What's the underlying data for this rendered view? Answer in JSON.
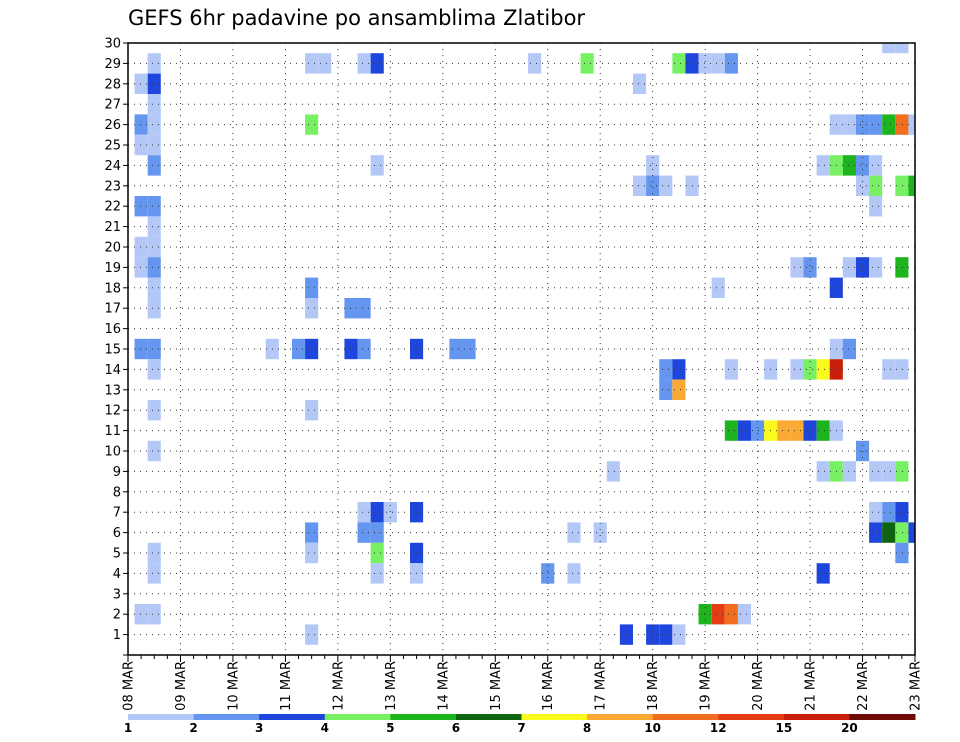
{
  "chart_data": {
    "type": "heatmap",
    "title": "GEFS 6hr padavine po ansamblima Zlatibor",
    "xlabel": "",
    "ylabel": "",
    "x_tick_labels": [
      "08 MAR",
      "09 MAR",
      "10 MAR",
      "11 MAR",
      "12 MAR",
      "13 MAR",
      "14 MAR",
      "15 MAR",
      "16 MAR",
      "17 MAR",
      "18 MAR",
      "19 MAR",
      "20 MAR",
      "21 MAR",
      "22 MAR",
      "23 MAR"
    ],
    "x_range_days": [
      0,
      15
    ],
    "time_step_days": 0.25,
    "y_tick_labels": [
      "1",
      "2",
      "3",
      "4",
      "5",
      "6",
      "7",
      "8",
      "9",
      "10",
      "11",
      "12",
      "13",
      "14",
      "15",
      "16",
      "17",
      "18",
      "19",
      "20",
      "21",
      "22",
      "23",
      "24",
      "25",
      "26",
      "27",
      "28",
      "29",
      "30"
    ],
    "y_range": [
      0,
      30
    ],
    "grid": "dotted",
    "legend": {
      "placement": "bottom",
      "boundaries": [
        "1",
        "2",
        "3",
        "4",
        "5",
        "6",
        "7",
        "8",
        "10",
        "12",
        "15",
        "20"
      ],
      "colors": [
        "#b4c8f8",
        "#6496f0",
        "#1e46dc",
        "#78f064",
        "#1eb41e",
        "#0f640f",
        "#fafa1e",
        "#faaa32",
        "#f06e1e",
        "#e63c14",
        "#c81e0a",
        "#6e0a05"
      ]
    },
    "cells": [
      [
        30,
        14.5,
        0
      ],
      [
        30,
        14.75,
        0
      ],
      [
        29,
        0.5,
        0
      ],
      [
        29,
        3.5,
        0
      ],
      [
        29,
        3.75,
        0
      ],
      [
        29,
        4.5,
        0
      ],
      [
        29,
        4.75,
        2
      ],
      [
        29,
        7.75,
        0
      ],
      [
        29,
        8.75,
        3
      ],
      [
        29,
        10.5,
        3
      ],
      [
        29,
        10.75,
        2
      ],
      [
        29,
        11.0,
        0
      ],
      [
        29,
        11.25,
        0
      ],
      [
        29,
        11.5,
        1
      ],
      [
        28,
        0.25,
        0
      ],
      [
        28,
        0.5,
        2
      ],
      [
        28,
        9.75,
        0
      ],
      [
        27,
        0.5,
        0
      ],
      [
        26,
        0.25,
        1
      ],
      [
        26,
        0.5,
        0
      ],
      [
        26,
        3.5,
        3
      ],
      [
        26,
        13.5,
        0
      ],
      [
        26,
        13.75,
        0
      ],
      [
        26,
        14.0,
        1
      ],
      [
        26,
        14.25,
        1
      ],
      [
        26,
        14.5,
        4
      ],
      [
        26,
        14.75,
        8
      ],
      [
        26,
        15.0,
        0
      ],
      [
        25,
        0.25,
        0
      ],
      [
        25,
        0.5,
        0
      ],
      [
        24,
        0.5,
        1
      ],
      [
        24,
        4.75,
        0
      ],
      [
        24,
        10.0,
        0
      ],
      [
        24,
        13.25,
        0
      ],
      [
        24,
        13.5,
        3
      ],
      [
        24,
        13.75,
        4
      ],
      [
        24,
        14.0,
        1
      ],
      [
        24,
        14.25,
        0
      ],
      [
        23,
        9.75,
        0
      ],
      [
        23,
        10.0,
        1
      ],
      [
        23,
        10.25,
        0
      ],
      [
        23,
        10.75,
        0
      ],
      [
        23,
        14.0,
        0
      ],
      [
        23,
        14.25,
        3
      ],
      [
        23,
        14.75,
        3
      ],
      [
        23,
        15.0,
        4
      ],
      [
        22,
        0.25,
        1
      ],
      [
        22,
        0.5,
        1
      ],
      [
        22,
        14.25,
        0
      ],
      [
        21,
        0.5,
        0
      ],
      [
        20,
        0.25,
        0
      ],
      [
        20,
        0.5,
        0
      ],
      [
        19,
        0.25,
        0
      ],
      [
        19,
        0.5,
        1
      ],
      [
        19,
        12.75,
        0
      ],
      [
        19,
        13.0,
        1
      ],
      [
        19,
        13.75,
        0
      ],
      [
        19,
        14.0,
        2
      ],
      [
        19,
        14.25,
        0
      ],
      [
        19,
        14.75,
        4
      ],
      [
        18,
        0.5,
        0
      ],
      [
        18,
        3.5,
        1
      ],
      [
        18,
        11.25,
        0
      ],
      [
        18,
        13.5,
        2
      ],
      [
        17,
        0.5,
        0
      ],
      [
        17,
        3.5,
        0
      ],
      [
        17,
        4.25,
        1
      ],
      [
        17,
        4.5,
        1
      ],
      [
        15,
        0.25,
        1
      ],
      [
        15,
        0.5,
        1
      ],
      [
        15,
        2.75,
        0
      ],
      [
        15,
        3.25,
        1
      ],
      [
        15,
        3.5,
        2
      ],
      [
        15,
        4.25,
        2
      ],
      [
        15,
        4.5,
        1
      ],
      [
        15,
        5.5,
        2
      ],
      [
        15,
        6.25,
        1
      ],
      [
        15,
        6.5,
        1
      ],
      [
        15,
        13.5,
        0
      ],
      [
        15,
        13.75,
        1
      ],
      [
        14,
        0.5,
        0
      ],
      [
        14,
        10.25,
        1
      ],
      [
        14,
        10.5,
        2
      ],
      [
        14,
        11.5,
        0
      ],
      [
        14,
        12.25,
        0
      ],
      [
        14,
        12.75,
        0
      ],
      [
        14,
        13.0,
        3
      ],
      [
        14,
        13.25,
        6
      ],
      [
        14,
        13.5,
        10
      ],
      [
        14,
        14.5,
        0
      ],
      [
        14,
        14.75,
        0
      ],
      [
        13,
        10.25,
        1
      ],
      [
        13,
        10.5,
        7
      ],
      [
        12,
        0.5,
        0
      ],
      [
        12,
        3.5,
        0
      ],
      [
        11,
        11.5,
        4
      ],
      [
        11,
        11.75,
        2
      ],
      [
        11,
        12.0,
        1
      ],
      [
        11,
        12.25,
        6
      ],
      [
        11,
        12.5,
        7
      ],
      [
        11,
        12.75,
        7
      ],
      [
        11,
        13.0,
        2
      ],
      [
        11,
        13.25,
        4
      ],
      [
        11,
        13.5,
        0
      ],
      [
        10,
        0.5,
        0
      ],
      [
        10,
        14.0,
        1
      ],
      [
        9,
        9.25,
        0
      ],
      [
        9,
        13.25,
        0
      ],
      [
        9,
        13.5,
        3
      ],
      [
        9,
        13.75,
        0
      ],
      [
        9,
        14.25,
        0
      ],
      [
        9,
        14.5,
        0
      ],
      [
        9,
        14.75,
        3
      ],
      [
        7,
        4.5,
        0
      ],
      [
        7,
        4.75,
        2
      ],
      [
        7,
        5.0,
        0
      ],
      [
        7,
        5.5,
        2
      ],
      [
        7,
        14.25,
        0
      ],
      [
        7,
        14.5,
        1
      ],
      [
        7,
        14.75,
        2
      ],
      [
        6,
        3.5,
        1
      ],
      [
        6,
        4.5,
        1
      ],
      [
        6,
        4.75,
        1
      ],
      [
        6,
        8.5,
        0
      ],
      [
        6,
        9.0,
        0
      ],
      [
        6,
        14.25,
        2
      ],
      [
        6,
        14.5,
        5
      ],
      [
        6,
        14.75,
        3
      ],
      [
        6,
        15.0,
        2
      ],
      [
        5,
        0.5,
        0
      ],
      [
        5,
        3.5,
        0
      ],
      [
        5,
        4.75,
        3
      ],
      [
        5,
        5.5,
        2
      ],
      [
        5,
        14.75,
        1
      ],
      [
        4,
        0.5,
        0
      ],
      [
        4,
        4.75,
        0
      ],
      [
        4,
        5.5,
        0
      ],
      [
        4,
        8.0,
        1
      ],
      [
        4,
        8.5,
        0
      ],
      [
        4,
        13.25,
        2
      ],
      [
        2,
        0.25,
        0
      ],
      [
        2,
        0.5,
        0
      ],
      [
        2,
        11.0,
        4
      ],
      [
        2,
        11.25,
        9
      ],
      [
        2,
        11.5,
        8
      ],
      [
        2,
        11.75,
        0
      ],
      [
        1,
        3.5,
        0
      ],
      [
        1,
        9.5,
        2
      ],
      [
        1,
        10.0,
        2
      ],
      [
        1,
        10.25,
        2
      ],
      [
        1,
        10.5,
        0
      ]
    ]
  }
}
